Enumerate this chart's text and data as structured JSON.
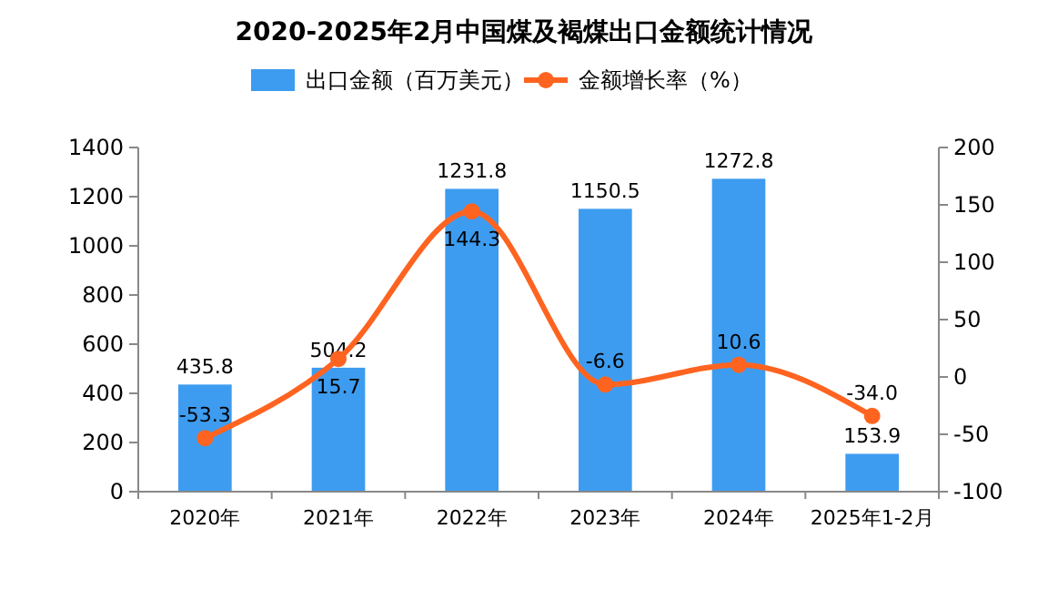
{
  "chart_data": {
    "type": "bar",
    "title": "2020-2025年2月中国煤及褐煤出口金额统计情况",
    "categories": [
      "2020年",
      "2021年",
      "2022年",
      "2023年",
      "2024年",
      "2025年1-2月"
    ],
    "series": [
      {
        "name": "出口金额（百万美元）",
        "color": "#3d9cf0",
        "values": [
          435.8,
          504.2,
          1231.8,
          1150.5,
          1272.8,
          153.9
        ],
        "value_labels": [
          "435.8",
          "504.2",
          "1231.8",
          "1150.5",
          "1272.8",
          "153.9"
        ]
      },
      {
        "name": "金额增长率（%）",
        "type": "line",
        "axis": "y2",
        "color": "#fe6420",
        "values": [
          -53.3,
          15.7,
          144.3,
          -6.6,
          10.6,
          -34.0
        ],
        "value_labels": [
          "-53.3",
          "15.7",
          "144.3",
          "-6.6",
          "10.6",
          "-34.0"
        ]
      }
    ],
    "ylim": [
      0,
      1400
    ],
    "yticks": [
      0,
      200,
      400,
      600,
      800,
      1000,
      1200,
      1400
    ],
    "y2lim": [
      -100,
      200
    ],
    "y2ticks": [
      -100,
      -50,
      0,
      50,
      100,
      150,
      200
    ],
    "legend": "top",
    "marker": "circle"
  }
}
